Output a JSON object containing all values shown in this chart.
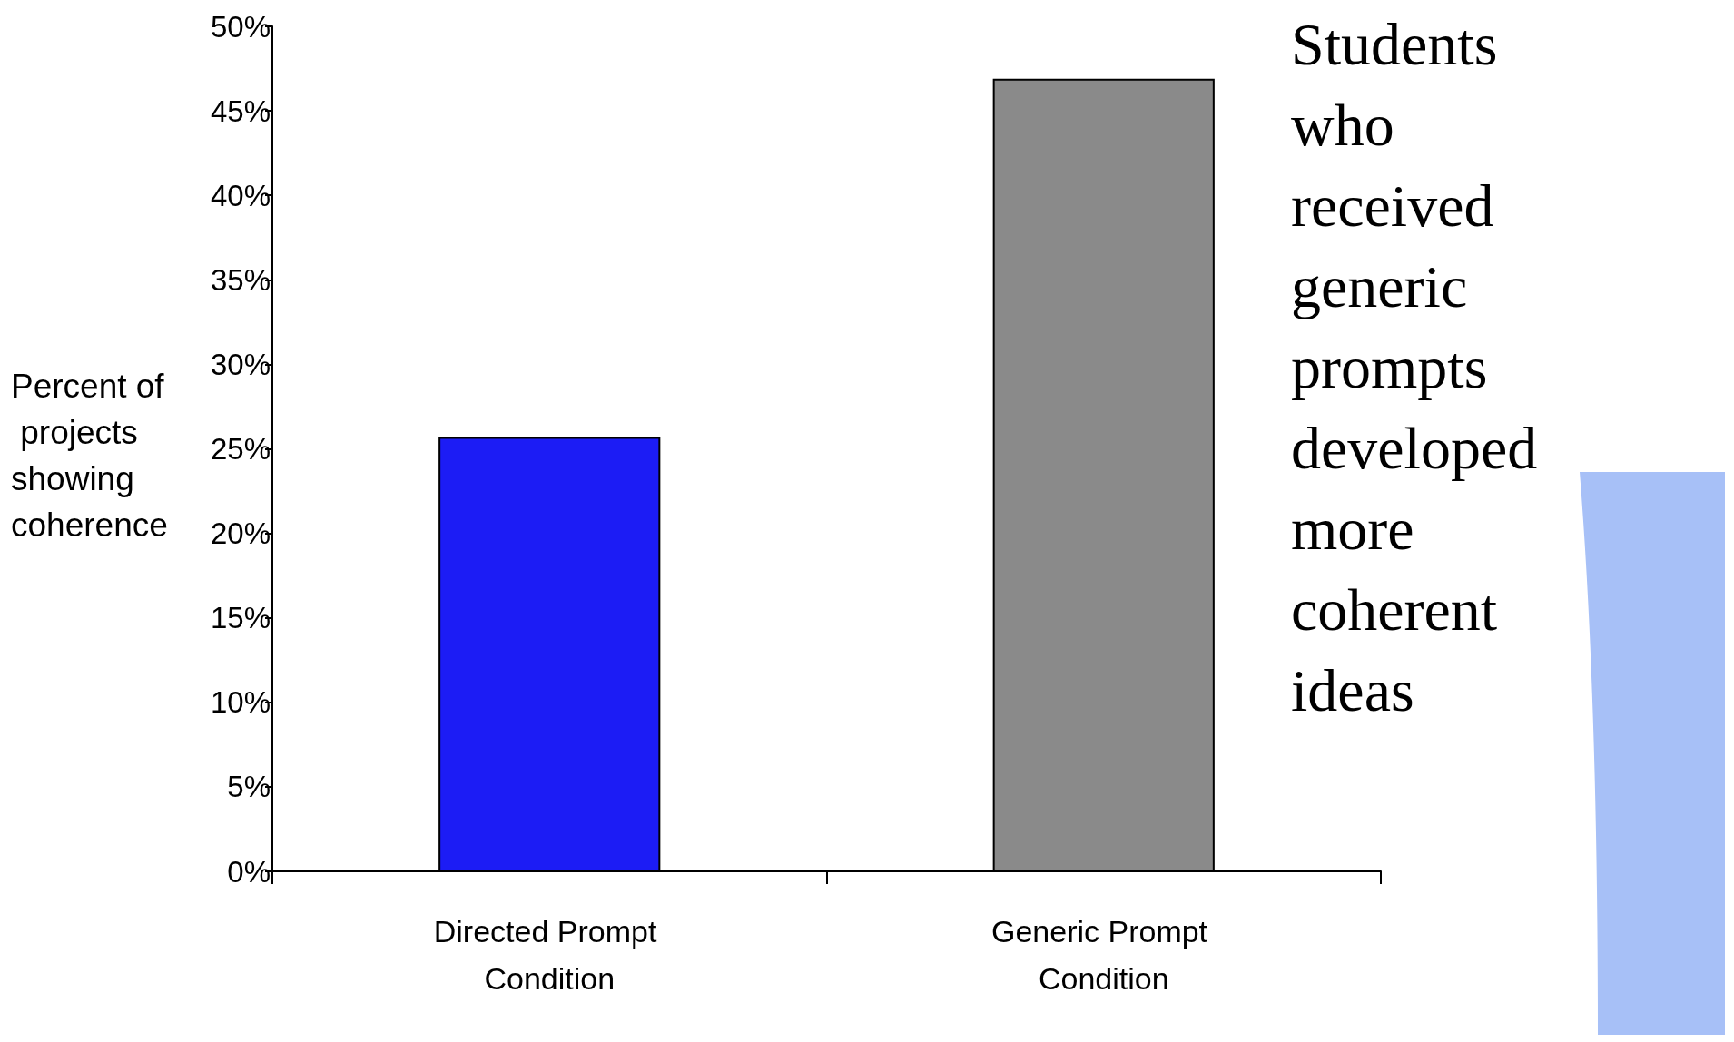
{
  "chart_data": {
    "type": "bar",
    "ylabel": "Percent of projects showing coherence",
    "categories": [
      "Directed Prompt Condition",
      "Generic Prompt Condition"
    ],
    "values": [
      25.7,
      46.9
    ],
    "colors": [
      "#1c1cf5",
      "#8a8a8a"
    ],
    "ylim": [
      0,
      50
    ],
    "yticks": [
      {
        "value": 0,
        "label": "0%"
      },
      {
        "value": 5,
        "label": "5%"
      },
      {
        "value": 10,
        "label": "10%"
      },
      {
        "value": 15,
        "label": "15%"
      },
      {
        "value": 20,
        "label": "20%"
      },
      {
        "value": 25,
        "label": "25%"
      },
      {
        "value": 30,
        "label": "30%"
      },
      {
        "value": 35,
        "label": "35%"
      },
      {
        "value": 40,
        "label": "40%"
      },
      {
        "value": 45,
        "label": "45%"
      },
      {
        "value": 50,
        "label": "50%"
      }
    ],
    "grid": false,
    "annotations": [
      "Students who received generic prompts developed more coherent ideas"
    ]
  }
}
